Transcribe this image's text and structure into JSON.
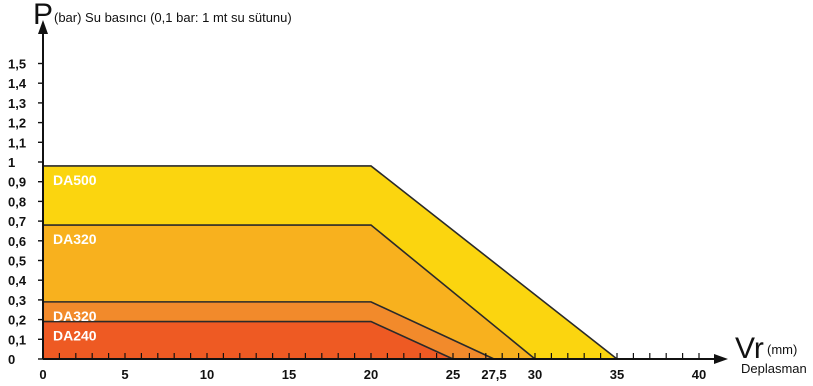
{
  "chart_data": {
    "type": "area",
    "title": "",
    "y_axis": {
      "symbol": "P",
      "label": "(bar) Su basıncı (0,1 bar: 1 mt su sütunu)",
      "range": [
        0,
        1.5
      ],
      "ticks": [
        0,
        0.1,
        0.2,
        0.3,
        0.4,
        0.5,
        0.6,
        0.7,
        0.8,
        0.9,
        1,
        1.1,
        1.2,
        1.3,
        1.4,
        1.5
      ],
      "tick_labels": [
        "0",
        "0,1",
        "0,2",
        "0,3",
        "0,4",
        "0,5",
        "0,6",
        "0,7",
        "0,8",
        "0,9",
        "1",
        "1,1",
        "1,2",
        "1,3",
        "1,4",
        "1,5"
      ]
    },
    "x_axis": {
      "symbol": "Vr",
      "unit": "(mm)",
      "label": "Deplasman",
      "range": [
        0,
        40
      ],
      "ticks": [
        0,
        5,
        10,
        15,
        20,
        25,
        27.5,
        30,
        35,
        40
      ],
      "tick_labels": [
        "0",
        "5",
        "10",
        "15",
        "20",
        "25",
        "27,5",
        "30",
        "35",
        "40"
      ]
    },
    "series": [
      {
        "name": "DA500",
        "color": "#fbd50f",
        "points": [
          [
            0,
            0.98
          ],
          [
            20,
            0.98
          ],
          [
            35,
            0
          ]
        ]
      },
      {
        "name": "DA320",
        "color": "#f8b11e",
        "points": [
          [
            0,
            0.68
          ],
          [
            20,
            0.68
          ],
          [
            30,
            0
          ]
        ]
      },
      {
        "name": "DA320",
        "color": "#f28a2b",
        "points": [
          [
            0,
            0.29
          ],
          [
            20,
            0.29
          ],
          [
            27.5,
            0
          ]
        ]
      },
      {
        "name": "DA240",
        "color": "#ee5a23",
        "points": [
          [
            0,
            0.19
          ],
          [
            20,
            0.19
          ],
          [
            25,
            0
          ]
        ]
      }
    ]
  }
}
